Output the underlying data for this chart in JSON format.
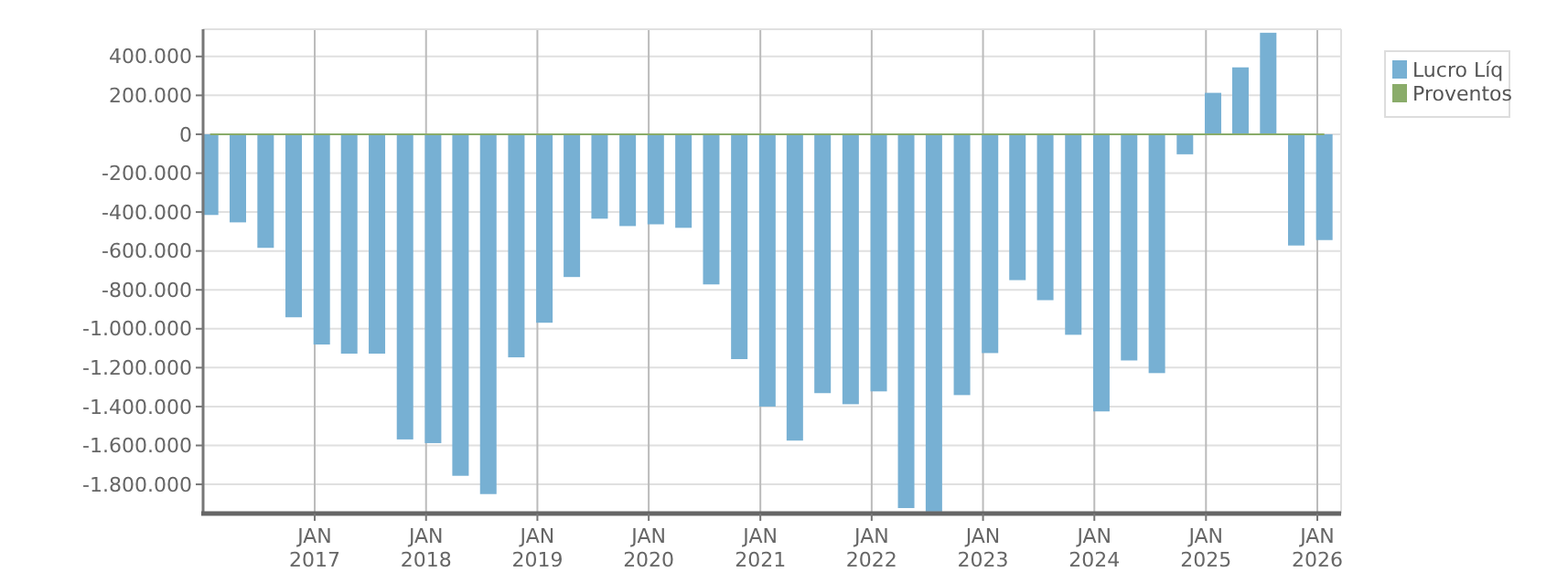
{
  "chart_data": {
    "type": "bar",
    "x": [
      "2016-01-24",
      "2016-04-24",
      "2016-07-24",
      "2016-10-24",
      "2017-01-24",
      "2017-04-24",
      "2017-07-24",
      "2017-10-24",
      "2018-01-24",
      "2018-04-24",
      "2018-07-24",
      "2018-10-24",
      "2019-01-24",
      "2019-04-24",
      "2019-07-24",
      "2019-10-24",
      "2020-01-24",
      "2020-04-24",
      "2020-07-24",
      "2020-10-24",
      "2021-01-24",
      "2021-04-24",
      "2021-07-24",
      "2021-10-24",
      "2022-01-24",
      "2022-04-24",
      "2022-07-24",
      "2022-10-24",
      "2023-01-24",
      "2023-04-24",
      "2023-07-24",
      "2023-10-24",
      "2024-01-24",
      "2024-04-24",
      "2024-07-24",
      "2024-10-24",
      "2025-01-24",
      "2025-04-24",
      "2025-07-24",
      "2025-10-24",
      "2026-01-24"
    ],
    "series": [
      {
        "name": "Lucro Líq",
        "color": "#77b0d3",
        "values": [
          -415000,
          -453000,
          -584000,
          -941000,
          -1081000,
          -1128000,
          -1128000,
          -1569000,
          -1588000,
          -1756000,
          -1850000,
          -1147000,
          -969000,
          -734000,
          -434000,
          -472000,
          -463000,
          -481000,
          -772000,
          -1156000,
          -1400000,
          -1575000,
          -1331000,
          -1388000,
          -1322000,
          -1922000,
          -1940000,
          -1341000,
          -1125000,
          -750000,
          -853000,
          -1031000,
          -1425000,
          -1163000,
          -1228000,
          -103000,
          213000,
          344000,
          522000,
          -572000,
          -544000
        ]
      },
      {
        "name": "Proventos",
        "type": "line",
        "color": "#8aac6a",
        "values": [
          0,
          0,
          0,
          0,
          0,
          0,
          0,
          0,
          0,
          0,
          0,
          0,
          0,
          0,
          0,
          0,
          0,
          0,
          0,
          0,
          0,
          0,
          0,
          0,
          0,
          0,
          0,
          0,
          0,
          0,
          0,
          0,
          0,
          0,
          0,
          0,
          0,
          0,
          0,
          0,
          0
        ]
      }
    ],
    "xlim": [
      "2016-01-01",
      "2026-03-20"
    ],
    "xticks": [
      {
        "value": "2017-01-01",
        "label": "JAN 2017"
      },
      {
        "value": "2018-01-01",
        "label": "JAN 2018"
      },
      {
        "value": "2019-01-01",
        "label": "JAN 2019"
      },
      {
        "value": "2020-01-01",
        "label": "JAN 2020"
      },
      {
        "value": "2021-01-01",
        "label": "JAN 2021"
      },
      {
        "value": "2022-01-01",
        "label": "JAN 2022"
      },
      {
        "value": "2023-01-01",
        "label": "JAN 2023"
      },
      {
        "value": "2024-01-01",
        "label": "JAN 2024"
      },
      {
        "value": "2025-01-01",
        "label": "JAN 2025"
      },
      {
        "value": "2026-01-01",
        "label": "JAN 2026"
      }
    ],
    "ylim": [
      -1950000,
      540000
    ],
    "yticks": [
      {
        "value": -1800000,
        "label": "-1.800.000"
      },
      {
        "value": -1600000,
        "label": "-1.600.000"
      },
      {
        "value": -1400000,
        "label": "-1.400.000"
      },
      {
        "value": -1200000,
        "label": "-1.200.000"
      },
      {
        "value": -1000000,
        "label": "-1.000.000"
      },
      {
        "value": -800000,
        "label": "-800.000"
      },
      {
        "value": -600000,
        "label": "-600.000"
      },
      {
        "value": -400000,
        "label": "-400.000"
      },
      {
        "value": -200000,
        "label": "-200.000"
      },
      {
        "value": 0,
        "label": "0"
      },
      {
        "value": 200000,
        "label": "200.000"
      },
      {
        "value": 400000,
        "label": "400.000"
      }
    ],
    "grid": true,
    "legend": "top right"
  }
}
